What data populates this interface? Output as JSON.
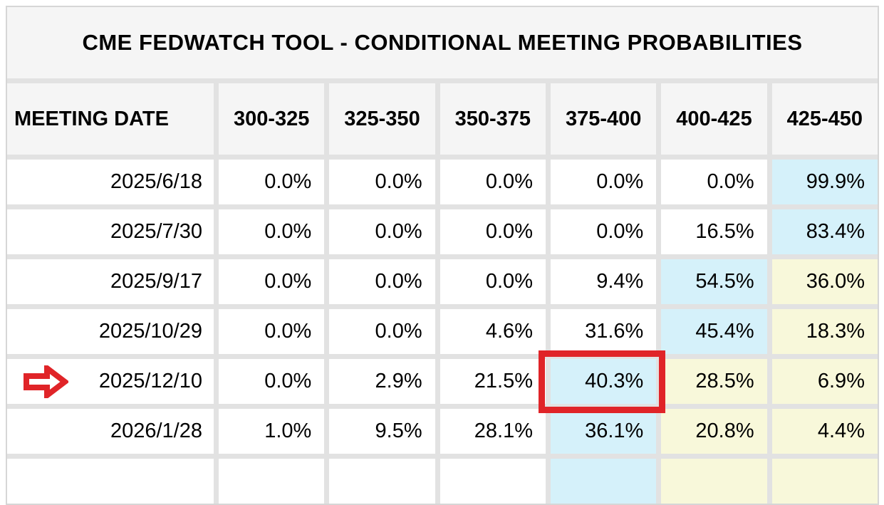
{
  "title": "CME FEDWATCH TOOL - CONDITIONAL MEETING PROBABILITIES",
  "table": {
    "date_header": "MEETING DATE",
    "rate_headers": [
      "300-325",
      "325-350",
      "350-375",
      "375-400",
      "400-425",
      "425-450"
    ],
    "rows": [
      {
        "date": "2025/6/18",
        "values": [
          "0.0%",
          "0.0%",
          "0.0%",
          "0.0%",
          "0.0%",
          "99.9%"
        ],
        "highlights": [
          "",
          "",
          "",
          "",
          "",
          "blue"
        ]
      },
      {
        "date": "2025/7/30",
        "values": [
          "0.0%",
          "0.0%",
          "0.0%",
          "0.0%",
          "16.5%",
          "83.4%"
        ],
        "highlights": [
          "",
          "",
          "",
          "",
          "",
          "blue"
        ]
      },
      {
        "date": "2025/9/17",
        "values": [
          "0.0%",
          "0.0%",
          "0.0%",
          "9.4%",
          "54.5%",
          "36.0%"
        ],
        "highlights": [
          "",
          "",
          "",
          "",
          "blue",
          "yellow"
        ]
      },
      {
        "date": "2025/10/29",
        "values": [
          "0.0%",
          "0.0%",
          "4.6%",
          "31.6%",
          "45.4%",
          "18.3%"
        ],
        "highlights": [
          "",
          "",
          "",
          "",
          "blue",
          "yellow"
        ]
      },
      {
        "date": "2025/12/10",
        "values": [
          "0.0%",
          "2.9%",
          "21.5%",
          "40.3%",
          "28.5%",
          "6.9%"
        ],
        "highlights": [
          "",
          "",
          "",
          "blue",
          "yellow",
          "yellow"
        ],
        "arrow": true,
        "red_box_col": 3
      },
      {
        "date": "2026/1/28",
        "values": [
          "1.0%",
          "9.5%",
          "28.1%",
          "36.1%",
          "20.8%",
          "4.4%"
        ],
        "highlights": [
          "",
          "",
          "",
          "blue",
          "yellow",
          "yellow"
        ]
      },
      {
        "date": "",
        "values": [
          "",
          "",
          "",
          "",
          "",
          ""
        ],
        "highlights": [
          "",
          "",
          "",
          "blue",
          "yellow",
          "yellow"
        ],
        "partial": true
      }
    ]
  },
  "annotations": {
    "arrow_icon": "red arrow pointing at 2025/12/10 row",
    "red_box": "red rectangle around 40.3% cell (375-400 column, 2025/12/10 row)"
  },
  "colors": {
    "highlight_blue": "#d5f1fa",
    "highlight_yellow": "#f8f8da",
    "annotation_red": "#e02428",
    "header_bg": "#f5f5f5",
    "grid_line": "#e2e2e2"
  },
  "chart_data": {
    "type": "table",
    "title": "CME FEDWATCH TOOL - CONDITIONAL MEETING PROBABILITIES",
    "columns": [
      "MEETING DATE",
      "300-325",
      "325-350",
      "350-375",
      "375-400",
      "400-425",
      "425-450"
    ],
    "rows": [
      [
        "2025/6/18",
        "0.0%",
        "0.0%",
        "0.0%",
        "0.0%",
        "0.0%",
        "99.9%"
      ],
      [
        "2025/7/30",
        "0.0%",
        "0.0%",
        "0.0%",
        "0.0%",
        "16.5%",
        "83.4%"
      ],
      [
        "2025/9/17",
        "0.0%",
        "0.0%",
        "0.0%",
        "9.4%",
        "54.5%",
        "36.0%"
      ],
      [
        "2025/10/29",
        "0.0%",
        "0.0%",
        "4.6%",
        "31.6%",
        "45.4%",
        "18.3%"
      ],
      [
        "2025/12/10",
        "0.0%",
        "2.9%",
        "21.5%",
        "40.3%",
        "28.5%",
        "6.9%"
      ],
      [
        "2026/1/28",
        "1.0%",
        "9.5%",
        "28.1%",
        "36.1%",
        "20.8%",
        "4.4%"
      ]
    ],
    "annotations": [
      "red arrow marks the 2025/12/10 meeting row",
      "red box highlights 40.3% probability for 375-400 at the 2025/12/10 meeting"
    ]
  }
}
